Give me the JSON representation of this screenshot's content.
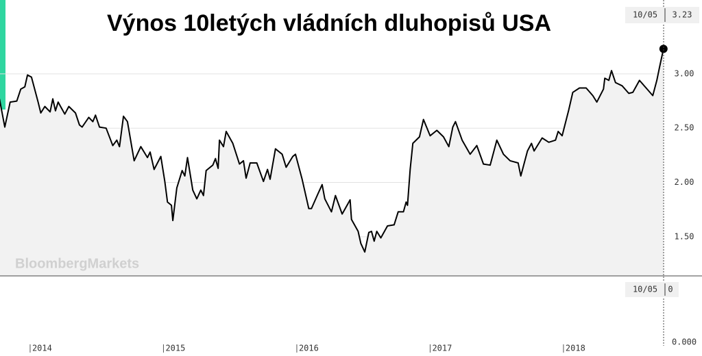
{
  "chart_data": {
    "type": "line",
    "title": "Výnos 10letých vládních dluhopisů USA",
    "watermark": "BloombergMarkets",
    "x": [
      2013.77,
      2013.81,
      2013.85,
      2013.9,
      2013.93,
      2013.96,
      2013.98,
      2014.01,
      2014.06,
      2014.08,
      2014.11,
      2014.15,
      2014.17,
      2014.19,
      2014.21,
      2014.26,
      2014.29,
      2014.34,
      2014.37,
      2014.39,
      2014.44,
      2014.47,
      2014.49,
      2014.52,
      2014.57,
      2014.62,
      2014.65,
      2014.67,
      2014.7,
      2014.73,
      2014.78,
      2014.83,
      2014.88,
      2014.9,
      2014.93,
      2014.98,
      2015.01,
      2015.03,
      2015.06,
      2015.07,
      2015.1,
      2015.14,
      2015.16,
      2015.18,
      2015.22,
      2015.25,
      2015.28,
      2015.3,
      2015.32,
      2015.37,
      2015.39,
      2015.41,
      2015.42,
      2015.45,
      2015.47,
      2015.52,
      2015.57,
      2015.6,
      2015.62,
      2015.65,
      2015.7,
      2015.75,
      2015.78,
      2015.8,
      2015.84,
      2015.89,
      2015.92,
      2015.97,
      2015.99,
      2016.04,
      2016.09,
      2016.11,
      2016.16,
      2016.19,
      2016.21,
      2016.26,
      2016.29,
      2016.34,
      2016.4,
      2016.41,
      2016.46,
      2016.48,
      2016.51,
      2016.54,
      2016.56,
      2016.58,
      2016.6,
      2016.63,
      2016.68,
      2016.73,
      2016.76,
      2016.8,
      2016.82,
      2016.83,
      2016.85,
      2016.87,
      2016.92,
      2016.95,
      2017.0,
      2017.05,
      2017.1,
      2017.14,
      2017.17,
      2017.19,
      2017.24,
      2017.3,
      2017.35,
      2017.4,
      2017.45,
      2017.5,
      2017.55,
      2017.6,
      2017.66,
      2017.68,
      2017.73,
      2017.76,
      2017.78,
      2017.84,
      2017.89,
      2017.94,
      2017.96,
      2017.99,
      2018.04,
      2018.07,
      2018.12,
      2018.17,
      2018.22,
      2018.25,
      2018.3,
      2018.31,
      2018.34,
      2018.36,
      2018.39,
      2018.44,
      2018.49,
      2018.52,
      2018.57,
      2018.62,
      2018.67,
      2018.7,
      2018.72,
      2018.75
    ],
    "values": [
      2.77,
      2.51,
      2.74,
      2.75,
      2.86,
      2.88,
      2.99,
      2.97,
      2.74,
      2.64,
      2.7,
      2.65,
      2.77,
      2.66,
      2.74,
      2.63,
      2.7,
      2.64,
      2.53,
      2.51,
      2.6,
      2.56,
      2.62,
      2.51,
      2.5,
      2.34,
      2.39,
      2.33,
      2.61,
      2.56,
      2.2,
      2.33,
      2.23,
      2.28,
      2.12,
      2.24,
      2.01,
      1.82,
      1.79,
      1.65,
      1.95,
      2.11,
      2.06,
      2.23,
      1.93,
      1.85,
      1.93,
      1.88,
      2.11,
      2.16,
      2.22,
      2.13,
      2.39,
      2.33,
      2.47,
      2.36,
      2.17,
      2.2,
      2.04,
      2.18,
      2.18,
      2.01,
      2.12,
      2.03,
      2.31,
      2.26,
      2.14,
      2.24,
      2.26,
      2.03,
      1.76,
      1.76,
      1.9,
      1.98,
      1.85,
      1.73,
      1.88,
      1.71,
      1.84,
      1.66,
      1.55,
      1.44,
      1.36,
      1.54,
      1.55,
      1.46,
      1.55,
      1.49,
      1.6,
      1.61,
      1.73,
      1.73,
      1.82,
      1.79,
      2.12,
      2.36,
      2.42,
      2.58,
      2.43,
      2.48,
      2.42,
      2.33,
      2.51,
      2.56,
      2.39,
      2.26,
      2.34,
      2.17,
      2.16,
      2.39,
      2.26,
      2.2,
      2.18,
      2.06,
      2.29,
      2.36,
      2.29,
      2.41,
      2.37,
      2.39,
      2.47,
      2.43,
      2.67,
      2.83,
      2.87,
      2.87,
      2.8,
      2.74,
      2.86,
      2.96,
      2.94,
      3.03,
      2.92,
      2.89,
      2.82,
      2.83,
      2.94,
      2.87,
      2.8,
      2.94,
      3.06,
      3.23
    ],
    "color": "#000000",
    "area_color": "#f2f2f2",
    "grid": true,
    "xlim": [
      2013.774,
      2018.751
    ],
    "xticks": [
      2014,
      2015,
      2016,
      2017,
      2018
    ],
    "ylim": [
      1.14,
      3.68
    ],
    "yticks": [
      {
        "value": 1.5,
        "label": "1.50"
      },
      {
        "value": 2,
        "label": "2.00"
      },
      {
        "value": 2.5,
        "label": "2.50"
      },
      {
        "value": 3,
        "label": "3.00"
      }
    ],
    "last": {
      "date": "10/05",
      "value": 3.23
    },
    "lower_panel": {
      "yticks": [
        {
          "value": 0,
          "label": "0.000"
        }
      ],
      "last": {
        "date": "10/05",
        "value": 0
      }
    }
  }
}
